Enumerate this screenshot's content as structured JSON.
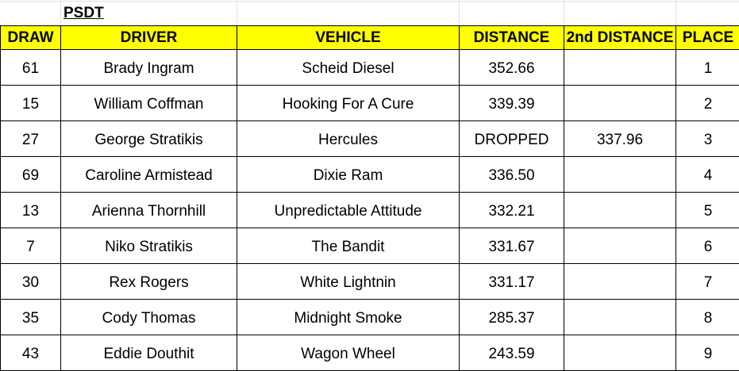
{
  "title": "PSDT",
  "colors": {
    "header_bg": "#ffff00"
  },
  "columns": [
    "DRAW",
    "DRIVER",
    "VEHICLE",
    "DISTANCE",
    "2nd DISTANCE",
    "PLACE"
  ],
  "rows": [
    [
      "61",
      "Brady Ingram",
      "Scheid Diesel",
      "352.66",
      "",
      "1"
    ],
    [
      "15",
      "William Coffman",
      "Hooking For A Cure",
      "339.39",
      "",
      "2"
    ],
    [
      "27",
      "George Stratikis",
      "Hercules",
      "DROPPED",
      "337.96",
      "3"
    ],
    [
      "69",
      "Caroline Armistead",
      "Dixie Ram",
      "336.50",
      "",
      "4"
    ],
    [
      "13",
      "Arienna Thornhill",
      "Unpredictable Attitude",
      "332.21",
      "",
      "5"
    ],
    [
      "7",
      "Niko Stratikis",
      "The Bandit",
      "331.67",
      "",
      "6"
    ],
    [
      "30",
      "Rex Rogers",
      "White Lightnin",
      "331.17",
      "",
      "7"
    ],
    [
      "35",
      "Cody Thomas",
      "Midnight Smoke",
      "285.37",
      "",
      "8"
    ],
    [
      "43",
      "Eddie Douthit",
      "Wagon Wheel",
      "243.59",
      "",
      "9"
    ]
  ]
}
